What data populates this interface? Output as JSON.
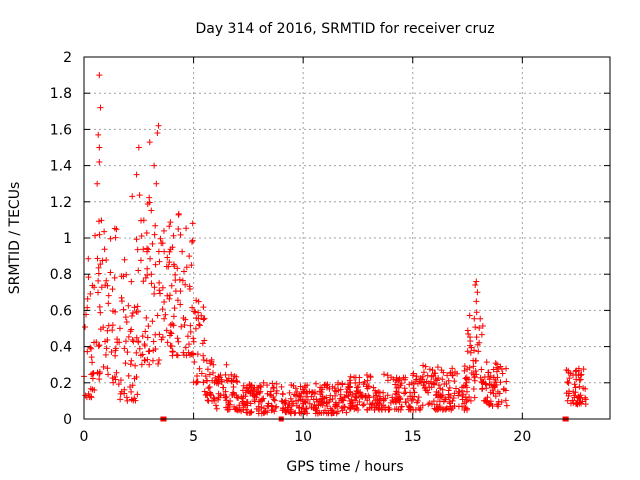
{
  "chart_data": {
    "type": "scatter",
    "title": "Day 314 of 2016, SRMTID for receiver cruz",
    "xlabel": "GPS time / hours",
    "ylabel": "SRMTID / TECUs",
    "xlim": [
      0,
      24
    ],
    "ylim": [
      0,
      2
    ],
    "x_ticks": [
      0,
      5,
      10,
      15,
      20
    ],
    "x_tick_labels": [
      "0",
      "5",
      "10",
      "15",
      "20"
    ],
    "y_ticks": [
      0,
      0.2,
      0.4,
      0.6,
      0.8,
      1,
      1.2,
      1.4,
      1.6,
      1.8,
      2
    ],
    "y_tick_labels": [
      "0",
      "0.2",
      "0.4",
      "0.6",
      "0.8",
      "1",
      "1.2",
      "1.4",
      "1.6",
      "1.8",
      "2"
    ],
    "grid": true,
    "marker": "+",
    "color": "#ff0000",
    "envelope": [
      {
        "t0": 0.0,
        "t1": 0.5,
        "lo": 0.12,
        "hi": 0.9
      },
      {
        "t0": 0.5,
        "t1": 1.5,
        "lo": 0.2,
        "hi": 1.1
      },
      {
        "t0": 1.5,
        "t1": 2.5,
        "lo": 0.1,
        "hi": 1.0
      },
      {
        "t0": 2.5,
        "t1": 3.5,
        "lo": 0.3,
        "hi": 1.25
      },
      {
        "t0": 3.5,
        "t1": 4.0,
        "lo": 0.4,
        "hi": 1.1
      },
      {
        "t0": 4.0,
        "t1": 5.0,
        "lo": 0.35,
        "hi": 1.15
      },
      {
        "t0": 5.0,
        "t1": 5.5,
        "lo": 0.2,
        "hi": 0.7
      },
      {
        "t0": 5.5,
        "t1": 6.0,
        "lo": 0.1,
        "hi": 0.35
      },
      {
        "t0": 6.0,
        "t1": 7.0,
        "lo": 0.05,
        "hi": 0.25
      },
      {
        "t0": 7.0,
        "t1": 8.8,
        "lo": 0.03,
        "hi": 0.2
      },
      {
        "t0": 9.0,
        "t1": 12.0,
        "lo": 0.03,
        "hi": 0.2
      },
      {
        "t0": 12.0,
        "t1": 15.0,
        "lo": 0.05,
        "hi": 0.25
      },
      {
        "t0": 15.0,
        "t1": 17.5,
        "lo": 0.05,
        "hi": 0.3
      },
      {
        "t0": 17.5,
        "t1": 18.3,
        "lo": 0.1,
        "hi": 0.6
      },
      {
        "t0": 18.3,
        "t1": 19.3,
        "lo": 0.07,
        "hi": 0.32
      },
      {
        "t0": 22.0,
        "t1": 22.9,
        "lo": 0.08,
        "hi": 0.28
      }
    ],
    "notable_points": [
      {
        "x": 0.7,
        "y": 1.9
      },
      {
        "x": 0.75,
        "y": 1.72
      },
      {
        "x": 0.65,
        "y": 1.57
      },
      {
        "x": 0.7,
        "y": 1.5
      },
      {
        "x": 0.7,
        "y": 1.42
      },
      {
        "x": 3.4,
        "y": 1.62
      },
      {
        "x": 3.35,
        "y": 1.58
      },
      {
        "x": 2.5,
        "y": 1.5
      },
      {
        "x": 3.0,
        "y": 1.53
      },
      {
        "x": 3.2,
        "y": 1.4
      },
      {
        "x": 2.4,
        "y": 1.35
      },
      {
        "x": 2.2,
        "y": 1.23
      },
      {
        "x": 0.6,
        "y": 1.3
      },
      {
        "x": 3.3,
        "y": 1.3
      },
      {
        "x": 17.9,
        "y": 0.76
      },
      {
        "x": 17.85,
        "y": 0.74
      },
      {
        "x": 17.95,
        "y": 0.7
      },
      {
        "x": 17.9,
        "y": 0.65
      },
      {
        "x": 4.8,
        "y": 0.9
      },
      {
        "x": 4.9,
        "y": 0.85
      },
      {
        "x": 4.3,
        "y": 1.05
      },
      {
        "x": 1.4,
        "y": 0.78
      },
      {
        "x": 6.5,
        "y": 0.3
      },
      {
        "x": 16.8,
        "y": 0.28
      }
    ],
    "zero_markers": [
      {
        "x": 3.6,
        "y": 0
      },
      {
        "x": 3.65,
        "y": 0
      },
      {
        "x": 9.0,
        "y": 0
      },
      {
        "x": 21.95,
        "y": 0
      },
      {
        "x": 22.0,
        "y": 0
      }
    ]
  }
}
